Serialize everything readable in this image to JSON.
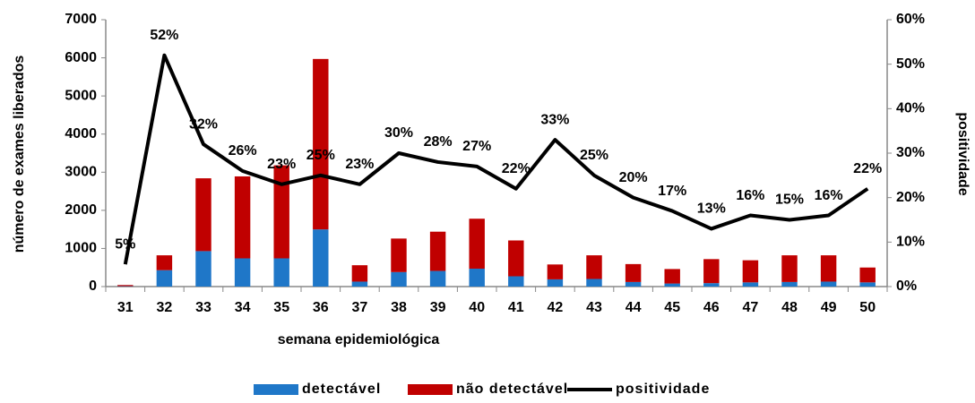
{
  "chart_data": {
    "type": "bar_line",
    "x_label": "semana epidemiológica",
    "y_label": "número de exames liberados",
    "y2_label": "positividade",
    "categories": [
      "31",
      "32",
      "33",
      "34",
      "35",
      "36",
      "37",
      "38",
      "39",
      "40",
      "41",
      "42",
      "43",
      "44",
      "45",
      "46",
      "47",
      "48",
      "49",
      "50"
    ],
    "series": [
      {
        "name": "detectável",
        "type": "bar",
        "color": "#1f77c8",
        "values": [
          10,
          430,
          930,
          740,
          740,
          1500,
          130,
          380,
          410,
          470,
          270,
          190,
          200,
          120,
          80,
          90,
          110,
          120,
          130,
          110
        ]
      },
      {
        "name": "não detectável",
        "type": "bar",
        "color": "#c00000",
        "values": [
          30,
          390,
          1910,
          2150,
          2440,
          4470,
          430,
          880,
          1030,
          1310,
          940,
          390,
          620,
          470,
          380,
          630,
          580,
          700,
          690,
          390
        ]
      },
      {
        "name": "positividade",
        "type": "line",
        "axis": "y2",
        "color": "#000000",
        "values": [
          5,
          52,
          32,
          26,
          23,
          25,
          23,
          30,
          28,
          27,
          22,
          33,
          25,
          20,
          17,
          13,
          16,
          15,
          16,
          22
        ],
        "value_labels": [
          "5%",
          "52%",
          "32%",
          "26%",
          "23%",
          "25%",
          "23%",
          "30%",
          "28%",
          "27%",
          "22%",
          "33%",
          "25%",
          "20%",
          "17%",
          "13%",
          "16%",
          "15%",
          "16%",
          "22%"
        ]
      }
    ],
    "ylim": [
      0,
      7000
    ],
    "yticks": [
      0,
      1000,
      2000,
      3000,
      4000,
      5000,
      6000,
      7000
    ],
    "y2lim": [
      0,
      60
    ],
    "y2ticks": [
      {
        "value": 0,
        "label": "0%"
      },
      {
        "value": 10,
        "label": "10%"
      },
      {
        "value": 20,
        "label": "20%"
      },
      {
        "value": 30,
        "label": "30%"
      },
      {
        "value": 40,
        "label": "40%"
      },
      {
        "value": 50,
        "label": "50%"
      },
      {
        "value": 60,
        "label": "60%"
      }
    ],
    "legend": "bottom"
  }
}
